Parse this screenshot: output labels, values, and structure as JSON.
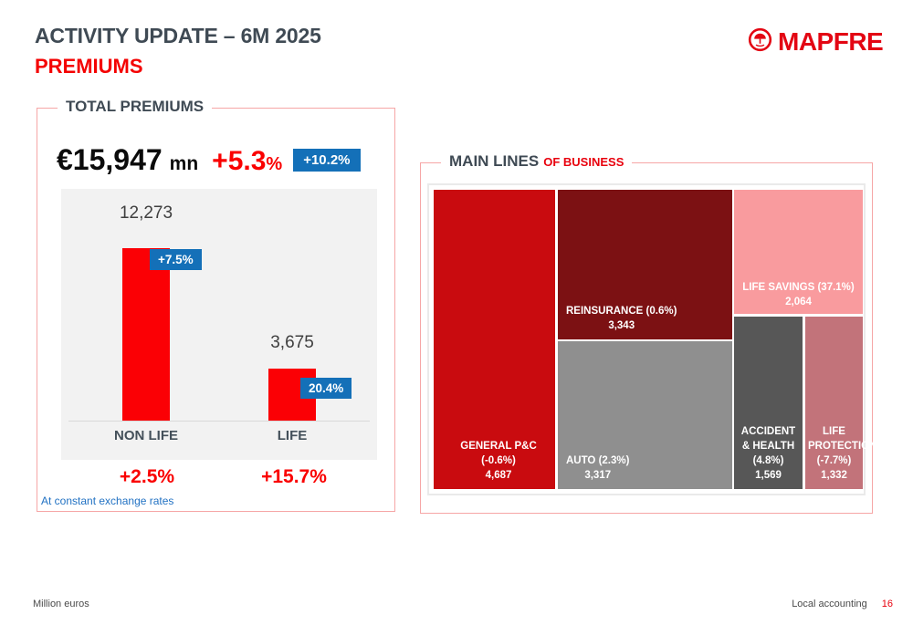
{
  "header": {
    "title": "ACTIVITY UPDATE – 6M 2025",
    "subtitle": "PREMIUMS",
    "logo_text": "MAPFRE"
  },
  "colors": {
    "brand_red": "#E30613",
    "accent_red": "#FA0000",
    "bar_red": "#FB0005",
    "badge_blue": "#1470B8",
    "slate_text": "#3F4A54",
    "frame_pink": "#F6A6A6",
    "footnote_blue": "#2272C3"
  },
  "chart_data": [
    {
      "type": "bar",
      "title": "TOTAL PREMIUMS",
      "headline": {
        "amount": "€15,947",
        "unit": "mn",
        "growth_number": "+5.3",
        "growth_percent": "%",
        "constant_fx_badge": "+10.2%"
      },
      "categories": [
        "NON LIFE",
        "LIFE"
      ],
      "values": [
        12273,
        3675
      ],
      "value_labels": [
        "12,273",
        "3,675"
      ],
      "growth_badges": [
        "+7.5%",
        "20.4%"
      ],
      "constant_fx_growth": [
        "+2.5%",
        "+15.7%"
      ],
      "footnote": "At constant exchange rates",
      "ylim": [
        0,
        12273
      ],
      "bar_color": "#FB0005",
      "badge_color": "#1470B8",
      "panel_bg": "#F2F2F2"
    },
    {
      "type": "treemap",
      "title_main": "MAIN LINES",
      "title_accent": "OF BUSINESS",
      "items": [
        {
          "name": "GENERAL P&C",
          "growth": "-0.6%",
          "label": "GENERAL P&C (-0.6%)",
          "value": 4687,
          "value_label": "4,687",
          "color": "#C90B0F"
        },
        {
          "name": "REINSURANCE",
          "growth": "0.6%",
          "label": "REINSURANCE (0.6%)",
          "value": 3343,
          "value_label": "3,343",
          "color": "#7C1113"
        },
        {
          "name": "AUTO",
          "growth": "2.3%",
          "label": "AUTO (2.3%)",
          "value": 3317,
          "value_label": "3,317",
          "color": "#8F8F8F"
        },
        {
          "name": "LIFE SAVINGS",
          "growth": "37.1%",
          "label": "LIFE SAVINGS (37.1%)",
          "value": 2064,
          "value_label": "2,064",
          "color": "#F99B9E"
        },
        {
          "name": "ACCIDENT & HEALTH",
          "growth": "4.8%",
          "label": "ACCIDENT & HEALTH (4.8%)",
          "value": 1569,
          "value_label": "1,569",
          "color": "#575757"
        },
        {
          "name": "LIFE PROTECTION",
          "growth": "-7.7%",
          "label": "LIFE PROTECTION (-7.7%)",
          "value": 1332,
          "value_label": "1,332",
          "color": "#C2737A"
        }
      ]
    }
  ],
  "footer": {
    "left": "Million euros",
    "right": "Local accounting",
    "page": "16"
  }
}
